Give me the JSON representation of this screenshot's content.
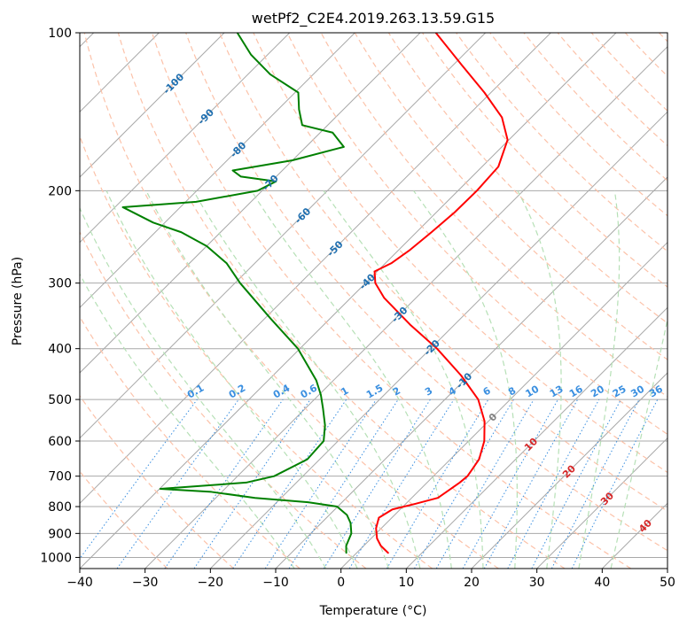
{
  "chart_data": {
    "type": "line",
    "title": "wetPf2_C2E4.2019.263.13.59.G15",
    "xlabel": "Temperature (°C)",
    "ylabel": "Pressure (hPa)",
    "xlim": [
      -40,
      50
    ],
    "ylim": [
      1050,
      100
    ],
    "y_scale": "log",
    "grid": true,
    "x_ticks": [
      -40,
      -30,
      -20,
      -10,
      0,
      10,
      20,
      30,
      40,
      50
    ],
    "y_ticks": [
      100,
      200,
      300,
      400,
      500,
      600,
      700,
      800,
      900,
      1000
    ],
    "isotherm_spacing_c": 10,
    "dry_adiabats_theta_c": [
      -30,
      -20,
      -10,
      0,
      10,
      20,
      30,
      40,
      50,
      60,
      70,
      80,
      90,
      100,
      110,
      120,
      130,
      140,
      150,
      160,
      170,
      180,
      190,
      200
    ],
    "moist_adiabats_start_c": [
      -10,
      -5,
      0,
      5,
      10,
      15,
      20,
      25,
      30,
      35,
      40
    ],
    "mixing_ratio_lines_gkg": [
      "0.1",
      "0.2",
      "0.4",
      "0.6",
      "1",
      "1.5",
      "2",
      "3",
      "4",
      "6",
      "8",
      "10",
      "13",
      "16",
      "20",
      "25",
      "30",
      "36"
    ],
    "isotherm_labels": [
      {
        "text": "-100",
        "value": -100
      },
      {
        "text": "-90",
        "value": -90
      },
      {
        "text": "-80",
        "value": -80
      },
      {
        "text": "-70",
        "value": -70
      },
      {
        "text": "-60",
        "value": -60
      },
      {
        "text": "-50",
        "value": -50
      },
      {
        "text": "-40",
        "value": -40
      },
      {
        "text": "-30",
        "value": -30
      },
      {
        "text": "-20",
        "value": -20
      },
      {
        "text": "-10",
        "value": -10
      },
      {
        "text": "0",
        "value": 0
      },
      {
        "text": "10",
        "value": 10
      },
      {
        "text": "20",
        "value": 20
      },
      {
        "text": "30",
        "value": 30
      },
      {
        "text": "40",
        "value": 40
      }
    ],
    "colors": {
      "temperature": "#ff0000",
      "dewpoint": "#008000",
      "isotherm": "#a8a8a8",
      "dry_adiabat": "#fcc2a9",
      "moist_adiabat": "#b6e0b6",
      "mixing_ratio": "#3a8fe0",
      "label_cold": "#1f6fb0",
      "label_zero": "#808080",
      "label_warm": "#d62728",
      "mixing_label": "#3a8fe0"
    },
    "series": [
      {
        "name": "Temperature",
        "color": "#ff0000",
        "pressure": [
          980,
          950,
          920,
          880,
          840,
          810,
          790,
          770,
          750,
          720,
          700,
          680,
          650,
          600,
          550,
          500,
          450,
          400,
          360,
          320,
          300,
          285,
          275,
          260,
          240,
          220,
          200,
          180,
          160,
          145,
          130,
          115,
          100
        ],
        "temperature": [
          4.8,
          2.6,
          0.9,
          -0.8,
          -2.0,
          -1.2,
          1.5,
          4.0,
          4.4,
          5.0,
          5.2,
          4.9,
          4.4,
          2.4,
          -0.6,
          -4.9,
          -11.2,
          -19.0,
          -26.8,
          -34.9,
          -38.5,
          -40.4,
          -39.1,
          -38.3,
          -37.7,
          -37.2,
          -37.1,
          -37.5,
          -40.2,
          -44.5,
          -51.0,
          -58.8,
          -67.6
        ]
      },
      {
        "name": "Dewpoint",
        "color": "#008000",
        "pressure": [
          980,
          950,
          900,
          860,
          830,
          800,
          785,
          770,
          750,
          740,
          720,
          700,
          650,
          600,
          560,
          520,
          490,
          460,
          400,
          350,
          300,
          275,
          255,
          240,
          230,
          215,
          210,
          200,
          192,
          188,
          183,
          175,
          165,
          155,
          150,
          140,
          130,
          120,
          110,
          100
        ],
        "temperature": [
          -1.6,
          -2.7,
          -3.8,
          -5.5,
          -7.3,
          -10.1,
          -15.2,
          -24.0,
          -31.6,
          -39.9,
          -27.7,
          -24.4,
          -21.9,
          -22.2,
          -24.4,
          -27.3,
          -29.7,
          -32.6,
          -40.3,
          -49.2,
          -59.2,
          -64.3,
          -70.0,
          -76.0,
          -81.8,
          -88.8,
          -78.4,
          -70.7,
          -69.3,
          -75.4,
          -77.6,
          -70.0,
          -64.2,
          -68.1,
          -73.9,
          -76.8,
          -79.5,
          -86.6,
          -92.6,
          -98.0
        ]
      }
    ]
  }
}
